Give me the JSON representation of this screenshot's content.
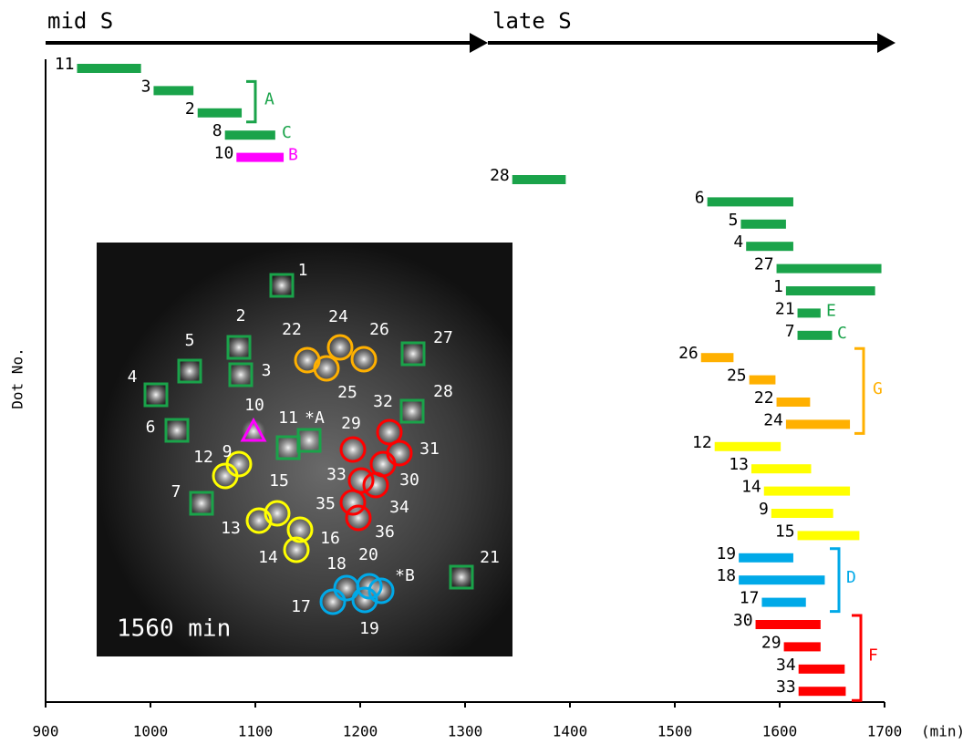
{
  "chart_data": {
    "type": "gantt",
    "phase_labels": [
      "mid S",
      "late S"
    ],
    "ylabel": "Dot No.",
    "xlabel": "(min)",
    "xlim": [
      900,
      1700
    ],
    "xticks": [
      900,
      1000,
      1100,
      1200,
      1300,
      1400,
      1500,
      1600,
      1700
    ],
    "categories": [
      "11",
      "3",
      "2",
      "8",
      "10",
      "28",
      "6",
      "5",
      "4",
      "27",
      "1",
      "21",
      "7",
      "26",
      "25",
      "22",
      "24",
      "12",
      "13",
      "14",
      "9",
      "15",
      "19",
      "18",
      "17",
      "30",
      "29",
      "34",
      "33"
    ],
    "values": [
      [
        930,
        991
      ],
      [
        1003,
        1041
      ],
      [
        1045,
        1087
      ],
      [
        1071,
        1119
      ],
      [
        1082,
        1127
      ],
      [
        1345,
        1396
      ],
      [
        1531,
        1613
      ],
      [
        1563,
        1606
      ],
      [
        1568,
        1613
      ],
      [
        1597,
        1697
      ],
      [
        1606,
        1691
      ],
      [
        1617,
        1639
      ],
      [
        1617,
        1650
      ],
      [
        1525,
        1556
      ],
      [
        1571,
        1596
      ],
      [
        1597,
        1629
      ],
      [
        1606,
        1667
      ],
      [
        1538,
        1601
      ],
      [
        1573,
        1630
      ],
      [
        1585,
        1667
      ],
      [
        1592,
        1651
      ],
      [
        1617,
        1676
      ],
      [
        1561,
        1613
      ],
      [
        1561,
        1643
      ],
      [
        1583,
        1625
      ],
      [
        1577,
        1639
      ],
      [
        1604,
        1639
      ],
      [
        1618,
        1662
      ],
      [
        1618,
        1663
      ]
    ],
    "colors": [
      "#1aa34a",
      "#1aa34a",
      "#1aa34a",
      "#1aa34a",
      "#ff00ff",
      "#1aa34a",
      "#1aa34a",
      "#1aa34a",
      "#1aa34a",
      "#1aa34a",
      "#1aa34a",
      "#1aa34a",
      "#1aa34a",
      "#ffb000",
      "#ffb000",
      "#ffb000",
      "#ffb000",
      "#ffff00",
      "#ffff00",
      "#ffff00",
      "#ffff00",
      "#ffff00",
      "#00a9e8",
      "#00a9e8",
      "#00a9e8",
      "#ff0000",
      "#ff0000",
      "#ff0000",
      "#ff0000"
    ],
    "annotations": [
      {
        "label": "A",
        "color": "#1aa34a"
      },
      {
        "label": "C",
        "color": "#1aa34a"
      },
      {
        "label": "B",
        "color": "#ff00ff"
      },
      {
        "label": "E",
        "color": "#1aa34a"
      },
      {
        "label": "C",
        "color": "#1aa34a"
      },
      {
        "label": "G",
        "color": "#ffb000"
      },
      {
        "label": "D",
        "color": "#00a9e8"
      },
      {
        "label": "F",
        "color": "#ff0000"
      }
    ],
    "inset": {
      "label": "1560 min",
      "markers": [
        {
          "label": "1",
          "shape": "square",
          "color": "#1aa34a"
        },
        {
          "label": "2",
          "shape": "square",
          "color": "#1aa34a"
        },
        {
          "label": "3",
          "shape": "square",
          "color": "#1aa34a"
        },
        {
          "label": "4",
          "shape": "square",
          "color": "#1aa34a"
        },
        {
          "label": "5",
          "shape": "square",
          "color": "#1aa34a"
        },
        {
          "label": "6",
          "shape": "square",
          "color": "#1aa34a"
        },
        {
          "label": "7",
          "shape": "square",
          "color": "#1aa34a"
        },
        {
          "label": "9",
          "shape": "circle",
          "color": "#ffff00"
        },
        {
          "label": "10",
          "shape": "triangle",
          "color": "#ff00ff"
        },
        {
          "label": "11",
          "shape": "square",
          "color": "#1aa34a"
        },
        {
          "label": "*A",
          "shape": "square",
          "color": "#1aa34a"
        },
        {
          "label": "12",
          "shape": "circle",
          "color": "#ffff00"
        },
        {
          "label": "13",
          "shape": "circle",
          "color": "#ffff00"
        },
        {
          "label": "14",
          "shape": "circle",
          "color": "#ffff00"
        },
        {
          "label": "15",
          "shape": "circle",
          "color": "#ffff00"
        },
        {
          "label": "16",
          "shape": "circle",
          "color": "#ffff00"
        },
        {
          "label": "17",
          "shape": "circle",
          "color": "#00a9e8"
        },
        {
          "label": "18",
          "shape": "circle",
          "color": "#00a9e8"
        },
        {
          "label": "19",
          "shape": "circle",
          "color": "#00a9e8"
        },
        {
          "label": "20",
          "shape": "circle",
          "color": "#00a9e8"
        },
        {
          "label": "*B",
          "shape": "circle",
          "color": "#00a9e8"
        },
        {
          "label": "21",
          "shape": "square",
          "color": "#1aa34a"
        },
        {
          "label": "22",
          "shape": "circle",
          "color": "#ffb000"
        },
        {
          "label": "24",
          "shape": "circle",
          "color": "#ffb000"
        },
        {
          "label": "25",
          "shape": "circle",
          "color": "#ffb000"
        },
        {
          "label": "26",
          "shape": "circle",
          "color": "#ffb000"
        },
        {
          "label": "27",
          "shape": "square",
          "color": "#1aa34a"
        },
        {
          "label": "28",
          "shape": "square",
          "color": "#1aa34a"
        },
        {
          "label": "29",
          "shape": "circle",
          "color": "#ff0000"
        },
        {
          "label": "30",
          "shape": "circle",
          "color": "#ff0000"
        },
        {
          "label": "31",
          "shape": "circle",
          "color": "#ff0000"
        },
        {
          "label": "32",
          "shape": "circle",
          "color": "#ff0000"
        },
        {
          "label": "33",
          "shape": "circle",
          "color": "#ff0000"
        },
        {
          "label": "34",
          "shape": "circle",
          "color": "#ff0000"
        },
        {
          "label": "35",
          "shape": "circle",
          "color": "#ff0000"
        },
        {
          "label": "36",
          "shape": "circle",
          "color": "#ff0000"
        }
      ]
    }
  }
}
